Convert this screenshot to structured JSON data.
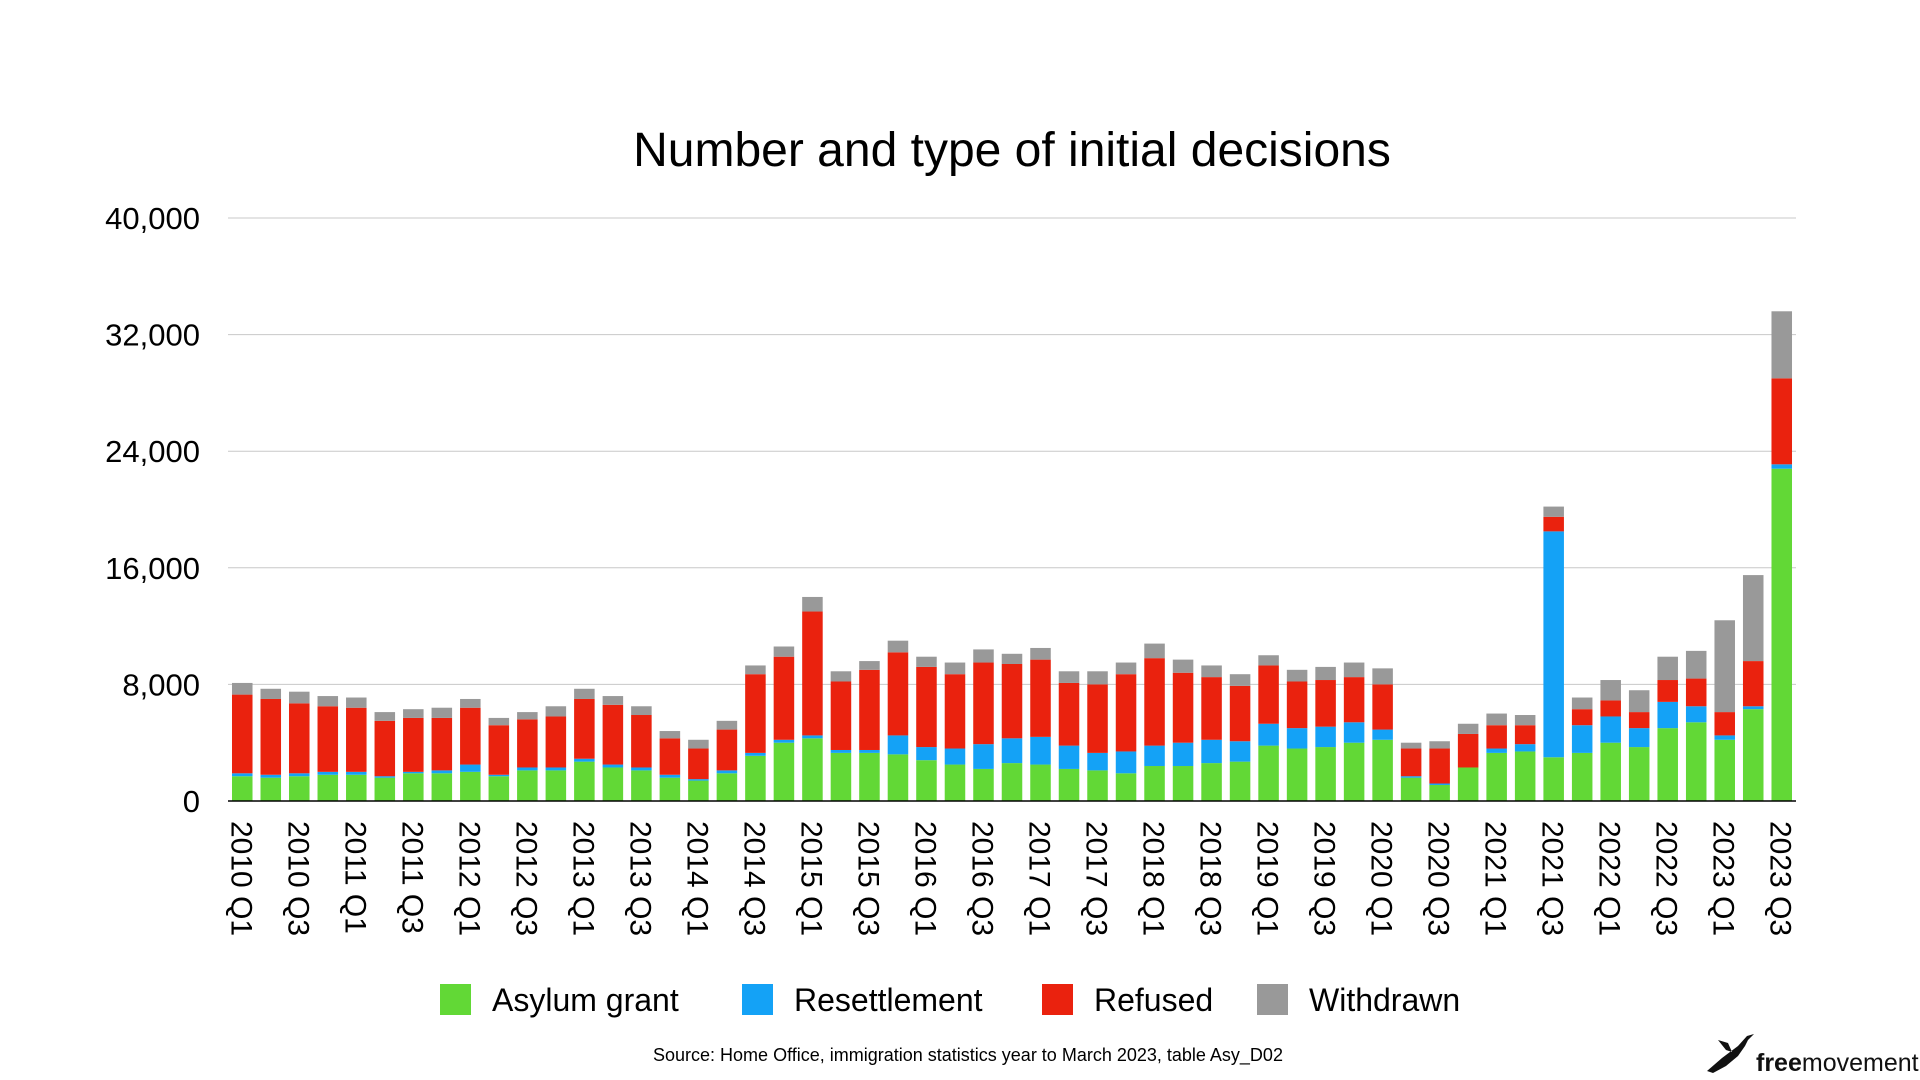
{
  "chart_data": {
    "type": "bar",
    "stacked": true,
    "title": "Number and type of initial decisions",
    "xlabel": "",
    "ylabel": "",
    "ylim": [
      0,
      40000
    ],
    "yticks": [
      0,
      8000,
      16000,
      24000,
      32000,
      40000
    ],
    "ytick_labels": [
      "0",
      "8,000",
      "16,000",
      "24,000",
      "32,000",
      "40,000"
    ],
    "grid": true,
    "legend_position": "bottom",
    "categories": [
      "2010 Q1",
      "2010 Q2",
      "2010 Q3",
      "2010 Q4",
      "2011 Q1",
      "2011 Q2",
      "2011 Q3",
      "2011 Q4",
      "2012 Q1",
      "2012 Q2",
      "2012 Q3",
      "2012 Q4",
      "2013 Q1",
      "2013 Q2",
      "2013 Q3",
      "2013 Q4",
      "2014 Q1",
      "2014 Q2",
      "2014 Q3",
      "2014 Q4",
      "2015 Q1",
      "2015 Q2",
      "2015 Q3",
      "2015 Q4",
      "2016 Q1",
      "2016 Q2",
      "2016 Q3",
      "2016 Q4",
      "2017 Q1",
      "2017 Q2",
      "2017 Q3",
      "2017 Q4",
      "2018 Q1",
      "2018 Q2",
      "2018 Q3",
      "2018 Q4",
      "2019 Q1",
      "2019 Q2",
      "2019 Q3",
      "2019 Q4",
      "2020 Q1",
      "2020 Q2",
      "2020 Q3",
      "2020 Q4",
      "2021 Q1",
      "2021 Q2",
      "2021 Q3",
      "2021 Q4",
      "2022 Q1",
      "2022 Q2",
      "2022 Q3",
      "2022 Q4",
      "2023 Q1",
      "2023 Q2",
      "2023 Q3"
    ],
    "tick_labels": [
      "2010 Q1",
      "2010 Q3",
      "2011 Q1",
      "2011 Q3",
      "2012 Q1",
      "2012 Q3",
      "2013 Q1",
      "2013 Q3",
      "2014 Q1",
      "2014 Q3",
      "2015 Q1",
      "2015 Q3",
      "2016 Q1",
      "2016 Q3",
      "2017 Q1",
      "2017 Q3",
      "2018 Q1",
      "2018 Q3",
      "2019 Q1",
      "2019 Q3",
      "2020 Q1",
      "2020 Q3",
      "2021 Q1",
      "2021 Q3",
      "2022 Q1",
      "2022 Q3",
      "2023 Q1",
      "2023 Q3"
    ],
    "series": [
      {
        "name": "Asylum grant",
        "color": "#62d836",
        "values": [
          1700,
          1600,
          1700,
          1800,
          1800,
          1600,
          1900,
          1900,
          2000,
          1700,
          2100,
          2100,
          2700,
          2300,
          2100,
          1600,
          1400,
          1900,
          3100,
          4000,
          4300,
          3300,
          3300,
          3200,
          2800,
          2500,
          2200,
          2600,
          2500,
          2200,
          2100,
          1900,
          2400,
          2400,
          2600,
          2700,
          3800,
          3600,
          3700,
          4000,
          4200,
          1600,
          1100,
          2300,
          3300,
          3400,
          3000,
          3300,
          4000,
          3700,
          5000,
          5400,
          4200,
          6300,
          22800
        ]
      },
      {
        "name": "Resettlement",
        "color": "#14a2f6",
        "values": [
          200,
          200,
          200,
          200,
          200,
          100,
          100,
          200,
          500,
          100,
          200,
          200,
          200,
          200,
          200,
          200,
          100,
          200,
          200,
          200,
          200,
          200,
          200,
          1300,
          900,
          1100,
          1700,
          1700,
          1900,
          1600,
          1200,
          1500,
          1400,
          1600,
          1600,
          1400,
          1500,
          1400,
          1400,
          1400,
          700,
          100,
          100,
          0,
          300,
          500,
          15500,
          1900,
          1800,
          1300,
          1800,
          1100,
          300,
          200,
          300
        ]
      },
      {
        "name": "Refused",
        "color": "#ea220e",
        "values": [
          5400,
          5200,
          4800,
          4500,
          4400,
          3800,
          3700,
          3600,
          3900,
          3400,
          3300,
          3500,
          4100,
          4100,
          3600,
          2500,
          2100,
          2800,
          5400,
          5700,
          8500,
          4700,
          5500,
          5700,
          5500,
          5100,
          5600,
          5100,
          5300,
          4300,
          4700,
          5300,
          6000,
          4800,
          4300,
          3800,
          4000,
          3200,
          3200,
          3100,
          3100,
          1900,
          2400,
          2300,
          1600,
          1300,
          1000,
          1100,
          1100,
          1100,
          1500,
          1900,
          1600,
          3100,
          5900
        ]
      },
      {
        "name": "Withdrawn",
        "color": "#999999",
        "values": [
          800,
          700,
          800,
          700,
          700,
          600,
          600,
          700,
          600,
          500,
          500,
          700,
          700,
          600,
          600,
          500,
          600,
          600,
          600,
          700,
          1000,
          700,
          600,
          800,
          700,
          800,
          900,
          700,
          800,
          800,
          900,
          800,
          1000,
          900,
          800,
          800,
          700,
          800,
          900,
          1000,
          1100,
          400,
          500,
          700,
          800,
          700,
          700,
          800,
          1400,
          1500,
          1600,
          1900,
          6300,
          5900,
          4600
        ]
      }
    ],
    "source": "Source: Home Office, immigration statistics year to March 2023, table Asy_D02"
  },
  "logo": {
    "part1": "free",
    "part2": "movement"
  }
}
